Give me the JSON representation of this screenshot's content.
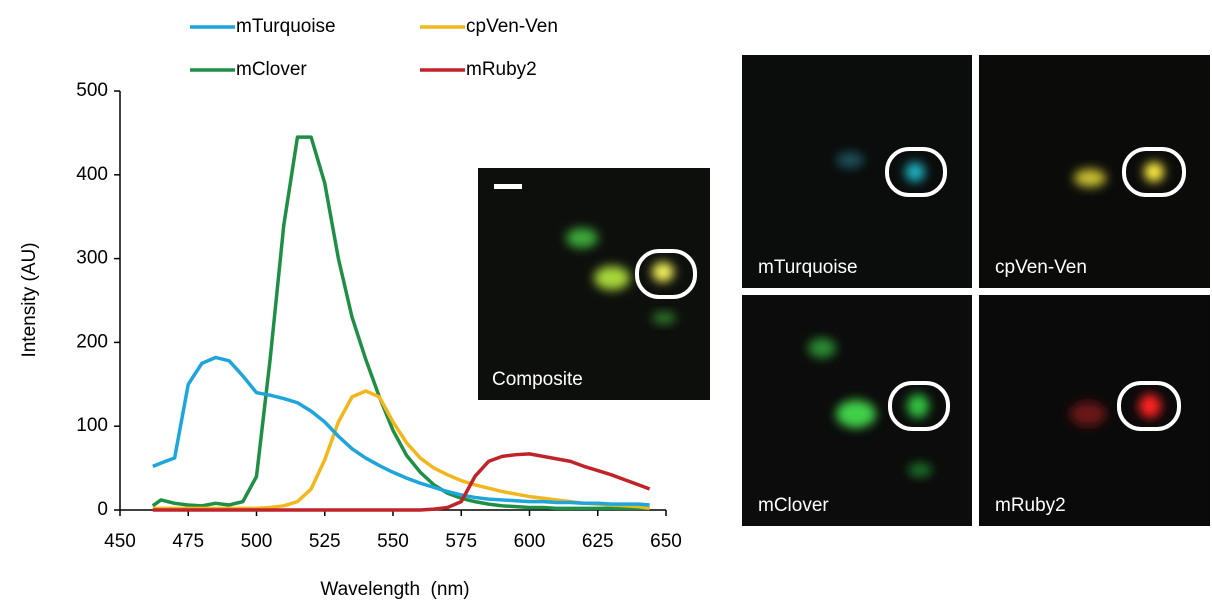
{
  "chart_data": {
    "type": "line",
    "x_label": "Wavelength  (nm)",
    "y_label": "Intensity (AU)",
    "x": [
      462,
      465,
      470,
      475,
      480,
      485,
      490,
      495,
      500,
      505,
      510,
      515,
      520,
      525,
      530,
      535,
      540,
      545,
      550,
      555,
      560,
      565,
      570,
      575,
      580,
      585,
      590,
      595,
      600,
      605,
      610,
      615,
      620,
      625,
      630,
      635,
      640,
      644
    ],
    "series": [
      {
        "name": "mTurquoise",
        "color": "#1ea5dc",
        "values": [
          52,
          56,
          62,
          150,
          175,
          182,
          178,
          160,
          140,
          137,
          133,
          128,
          118,
          105,
          88,
          73,
          62,
          53,
          45,
          38,
          32,
          27,
          22,
          18,
          15,
          13,
          12,
          11,
          10,
          10,
          9,
          9,
          8,
          8,
          7,
          7,
          7,
          6
        ]
      },
      {
        "name": "mClover",
        "color": "#1f8f45",
        "values": [
          5,
          12,
          8,
          6,
          5,
          8,
          6,
          10,
          40,
          180,
          340,
          445,
          445,
          390,
          300,
          230,
          180,
          135,
          95,
          65,
          45,
          30,
          20,
          14,
          10,
          7,
          5,
          4,
          3,
          3,
          2,
          2,
          2,
          2,
          2,
          2,
          2,
          2
        ]
      },
      {
        "name": "cpVen-Ven",
        "color": "#f2b71c",
        "values": [
          2,
          2,
          2,
          2,
          2,
          2,
          2,
          2,
          2,
          3,
          5,
          10,
          25,
          60,
          105,
          135,
          142,
          135,
          105,
          80,
          62,
          50,
          42,
          35,
          30,
          26,
          22,
          19,
          16,
          14,
          12,
          10,
          8,
          7,
          6,
          5,
          4,
          2
        ]
      },
      {
        "name": "mRuby2",
        "color": "#c0242b",
        "values": [
          0,
          0,
          0,
          0,
          0,
          0,
          0,
          0,
          0,
          0,
          0,
          0,
          0,
          0,
          0,
          0,
          0,
          0,
          0,
          0,
          0,
          1,
          3,
          10,
          40,
          58,
          64,
          66,
          67,
          64,
          61,
          58,
          52,
          47,
          42,
          36,
          30,
          25
        ]
      }
    ],
    "xlim": [
      450,
      650
    ],
    "xticks": [
      450,
      475,
      500,
      525,
      550,
      575,
      600,
      625,
      650
    ],
    "ylim": [
      0,
      500
    ],
    "yticks": [
      0,
      100,
      200,
      300,
      400,
      500
    ],
    "grid": false
  },
  "images": [
    {
      "label": "Composite"
    },
    {
      "label": "mTurquoise"
    },
    {
      "label": "cpVen-Ven"
    },
    {
      "label": "mClover"
    },
    {
      "label": "mRuby2"
    }
  ]
}
